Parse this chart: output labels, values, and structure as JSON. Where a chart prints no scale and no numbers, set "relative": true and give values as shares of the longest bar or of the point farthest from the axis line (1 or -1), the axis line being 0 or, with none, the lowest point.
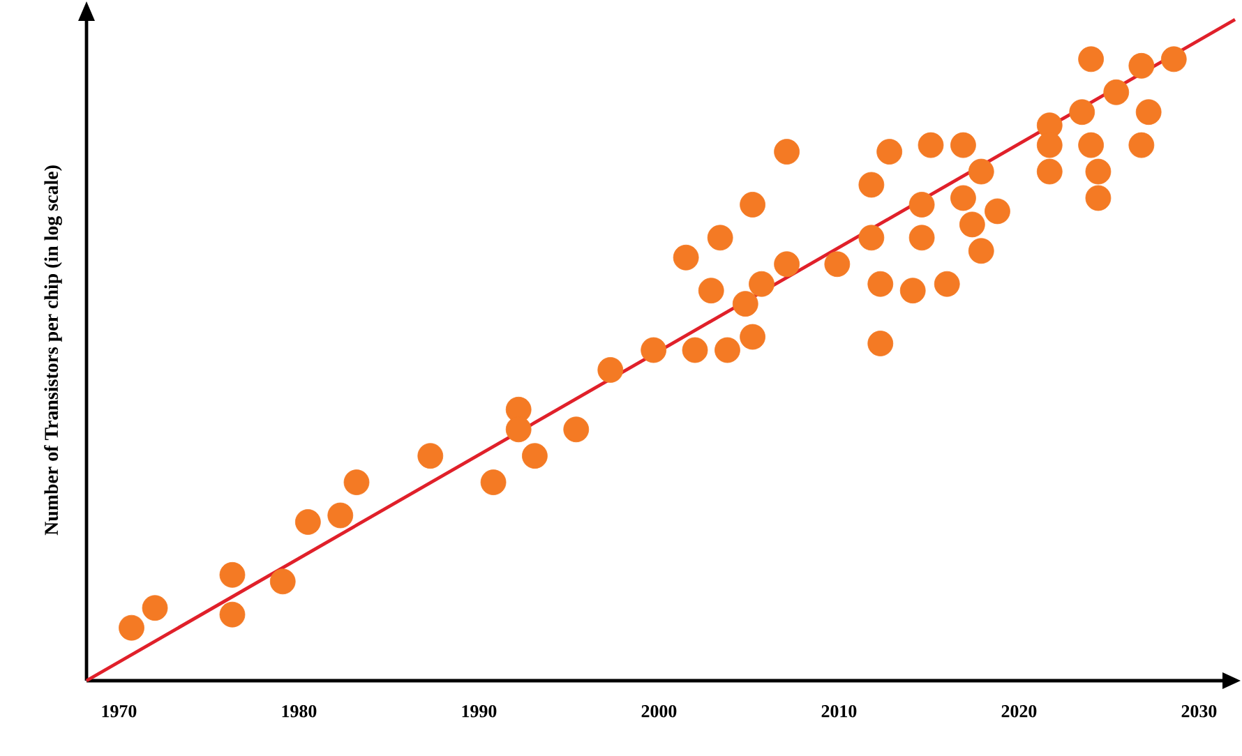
{
  "chart_data": {
    "type": "scatter",
    "relative": true,
    "ylabel": "Number of Transistors per chip (in log scale)",
    "xlim": [
      1968.2,
      2032
    ],
    "xticks": [
      1970,
      1980,
      1990,
      2000,
      2010,
      2020,
      2030
    ],
    "grid": false,
    "tick_labels": "x",
    "series": [
      {
        "marker": "circle",
        "color": "#f47a24",
        "x": [
          1970.7,
          1972.0,
          1976.3,
          1976.3,
          1979.1,
          1980.5,
          1982.3,
          1983.2,
          1987.3,
          1990.8,
          1992.2,
          1992.2,
          1993.1,
          1995.4,
          1997.3,
          1999.7,
          2001.5,
          2002.9,
          2002.0,
          2003.4,
          2003.8,
          2004.8,
          2005.2,
          2005.2,
          2005.7,
          2007.1,
          2007.1,
          2009.9,
          2011.8,
          2011.8,
          2012.3,
          2012.3,
          2012.8,
          2014.1,
          2014.6,
          2014.6,
          2015.1,
          2016.0,
          2016.9,
          2016.9,
          2017.4,
          2017.9,
          2017.9,
          2018.8,
          2021.7,
          2021.7,
          2021.7,
          2024.0,
          2023.5,
          2024.0,
          2024.4,
          2024.4,
          2025.4,
          2026.8,
          2026.8,
          2027.2,
          2028.6
        ],
        "values": [
          0.08,
          0.11,
          0.16,
          0.1,
          0.15,
          0.24,
          0.25,
          0.3,
          0.34,
          0.3,
          0.41,
          0.38,
          0.34,
          0.38,
          0.47,
          0.5,
          0.64,
          0.59,
          0.5,
          0.67,
          0.5,
          0.57,
          0.52,
          0.72,
          0.6,
          0.63,
          0.8,
          0.63,
          0.67,
          0.75,
          0.6,
          0.51,
          0.8,
          0.59,
          0.72,
          0.67,
          0.81,
          0.6,
          0.81,
          0.73,
          0.69,
          0.77,
          0.65,
          0.71,
          0.84,
          0.81,
          0.77,
          0.94,
          0.86,
          0.81,
          0.77,
          0.73,
          0.89,
          0.81,
          0.93,
          0.86,
          0.94
        ]
      },
      {
        "type": "line",
        "color": "#e0202a",
        "line_style": "solid",
        "x": [
          1968.2,
          2032
        ],
        "values": [
          0,
          1
        ]
      }
    ]
  }
}
